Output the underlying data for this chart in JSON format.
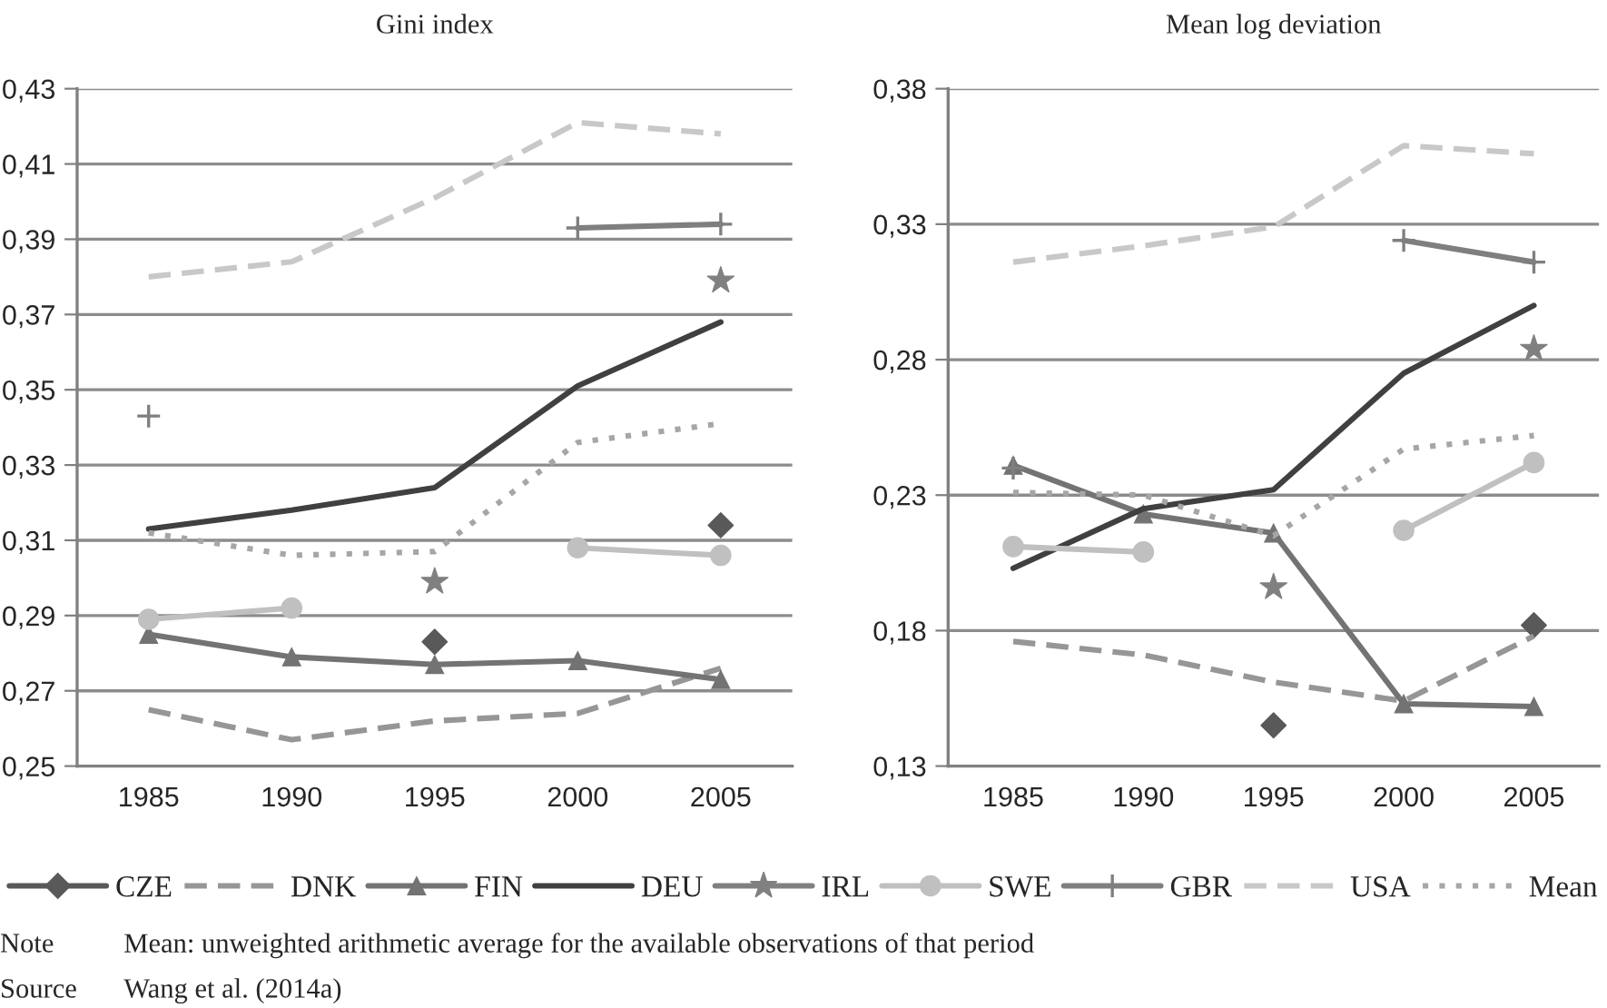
{
  "chart_data": [
    {
      "type": "line",
      "title": "Gini index",
      "categories": [
        "1985",
        "1990",
        "1995",
        "2000",
        "2005"
      ],
      "ylim": [
        0.25,
        0.43
      ],
      "yticks": [
        {
          "value": 0.25,
          "label": "0,25"
        },
        {
          "value": 0.27,
          "label": "0,27"
        },
        {
          "value": 0.29,
          "label": "0,29"
        },
        {
          "value": 0.31,
          "label": "0,31"
        },
        {
          "value": 0.33,
          "label": "0,33"
        },
        {
          "value": 0.35,
          "label": "0,35"
        },
        {
          "value": 0.37,
          "label": "0,37"
        },
        {
          "value": 0.39,
          "label": "0,39"
        },
        {
          "value": 0.41,
          "label": "0,41"
        },
        {
          "value": 0.43,
          "label": "0,43"
        }
      ],
      "grid": "y",
      "legend": "bottom",
      "annotations": [
        "Note Mean: unweighted arithmetic average for the available observations of that period",
        "Source Wang et al. (2014a)"
      ],
      "series": [
        {
          "name": "CZE",
          "type": "scatter",
          "color": "#595959",
          "marker": "diamond",
          "values": [
            null,
            null,
            0.283,
            null,
            0.314
          ]
        },
        {
          "name": "DNK",
          "color": "#969696",
          "marker": "none",
          "line_style": "dashed",
          "values": [
            0.265,
            0.257,
            0.262,
            0.264,
            0.276
          ]
        },
        {
          "name": "FIN",
          "color": "#737373",
          "marker": "triangle",
          "line_style": "solid",
          "values": [
            0.285,
            0.279,
            0.277,
            0.278,
            0.273
          ]
        },
        {
          "name": "DEU",
          "color": "#404040",
          "marker": "none",
          "line_style": "solid",
          "values": [
            0.313,
            0.318,
            0.324,
            0.351,
            0.368
          ]
        },
        {
          "name": "IRL",
          "type": "scatter",
          "color": "#808080",
          "marker": "star",
          "values": [
            null,
            null,
            0.299,
            null,
            0.379
          ]
        },
        {
          "name": "SWE",
          "color": "#c0c0c0",
          "marker": "circle",
          "line_style": "solid",
          "values": [
            0.289,
            0.292,
            null,
            0.308,
            0.306
          ]
        },
        {
          "name": "GBR",
          "color": "#7f7f7f",
          "marker": "cross",
          "line_style": "solid",
          "values": [
            0.343,
            null,
            null,
            0.393,
            0.394
          ]
        },
        {
          "name": "USA",
          "color": "#c8c8c8",
          "marker": "none",
          "line_style": "dashed",
          "values": [
            0.38,
            0.384,
            0.401,
            0.421,
            0.418
          ]
        },
        {
          "name": "Mean",
          "color": "#a6a6a6",
          "marker": "none",
          "line_style": "dotted",
          "values": [
            0.312,
            0.306,
            0.307,
            0.336,
            0.341
          ]
        }
      ]
    },
    {
      "type": "line",
      "title": "Mean log deviation",
      "categories": [
        "1985",
        "1990",
        "1995",
        "2000",
        "2005"
      ],
      "ylim": [
        0.13,
        0.38
      ],
      "yticks": [
        {
          "value": 0.13,
          "label": "0,13"
        },
        {
          "value": 0.18,
          "label": "0,18"
        },
        {
          "value": 0.23,
          "label": "0,23"
        },
        {
          "value": 0.28,
          "label": "0,28"
        },
        {
          "value": 0.33,
          "label": "0,33"
        },
        {
          "value": 0.38,
          "label": "0,38"
        }
      ],
      "grid": "y",
      "series": [
        {
          "type": "scatter",
          "color": "#595959",
          "marker": "diamond",
          "values": [
            null,
            null,
            0.145,
            null,
            0.182
          ]
        },
        {
          "color": "#969696",
          "marker": "none",
          "line_style": "dashed",
          "values": [
            0.176,
            0.171,
            0.161,
            0.154,
            0.178
          ]
        },
        {
          "color": "#737373",
          "marker": "triangle",
          "line_style": "solid",
          "values": [
            0.241,
            0.223,
            0.216,
            0.153,
            0.152
          ]
        },
        {
          "color": "#404040",
          "marker": "none",
          "line_style": "solid",
          "values": [
            0.203,
            0.225,
            0.232,
            0.275,
            0.3
          ]
        },
        {
          "type": "scatter",
          "color": "#808080",
          "marker": "star",
          "values": [
            null,
            null,
            0.196,
            null,
            0.284
          ]
        },
        {
          "color": "#c0c0c0",
          "marker": "circle",
          "line_style": "solid",
          "values": [
            0.211,
            0.209,
            null,
            0.217,
            0.242
          ]
        },
        {
          "color": "#7f7f7f",
          "marker": "cross",
          "line_style": "solid",
          "values": [
            0.24,
            null,
            null,
            0.324,
            0.316
          ]
        },
        {
          "color": "#c8c8c8",
          "marker": "none",
          "line_style": "dashed",
          "values": [
            0.316,
            0.322,
            0.329,
            0.359,
            0.356
          ]
        },
        {
          "color": "#a6a6a6",
          "marker": "none",
          "line_style": "dotted",
          "values": [
            0.231,
            0.23,
            0.215,
            0.247,
            0.252
          ]
        }
      ]
    }
  ]
}
